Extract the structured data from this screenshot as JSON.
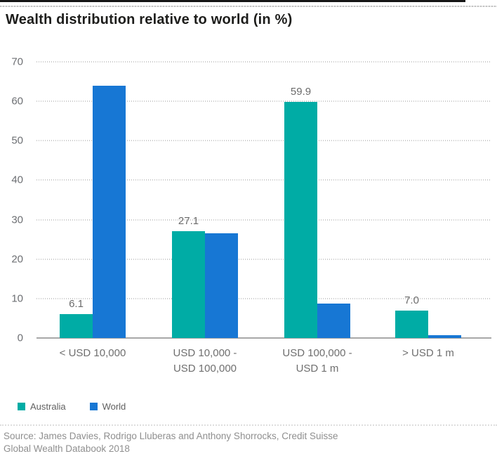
{
  "header": {
    "title": "Wealth distribution relative to world (in %)"
  },
  "chart_data": {
    "type": "bar",
    "title": "Wealth distribution relative to world (in %)",
    "categories": [
      "< USD 10,000",
      "USD 10,000 -\nUSD 100,000",
      "USD 100,000 -\nUSD 1 m",
      "> USD 1 m"
    ],
    "series": [
      {
        "name": "Australia",
        "color": "#00ACA5",
        "values": [
          6.1,
          27.1,
          59.9,
          7.0
        ],
        "value_labels": [
          "6.1",
          "27.1",
          "59.9",
          "7.0"
        ]
      },
      {
        "name": "World",
        "color": "#1777D4",
        "values": [
          63.9,
          26.5,
          8.7,
          0.8
        ],
        "value_labels": null
      }
    ],
    "ylim": [
      0,
      70
    ],
    "yticks": [
      70,
      60,
      50,
      40,
      30,
      20,
      10,
      0
    ],
    "grid": "horizontal-dotted",
    "legend_position": "bottom-left",
    "xlabel": "",
    "ylabel": ""
  },
  "legend": {
    "items": [
      {
        "label": "Australia",
        "color": "#00ACA5"
      },
      {
        "label": "World",
        "color": "#1777D4"
      }
    ]
  },
  "footer": {
    "source_line1": "Source: James Davies, Rodrigo Lluberas and Anthony Shorrocks, Credit Suisse",
    "source_line2": "Global Wealth Databook 2018"
  }
}
